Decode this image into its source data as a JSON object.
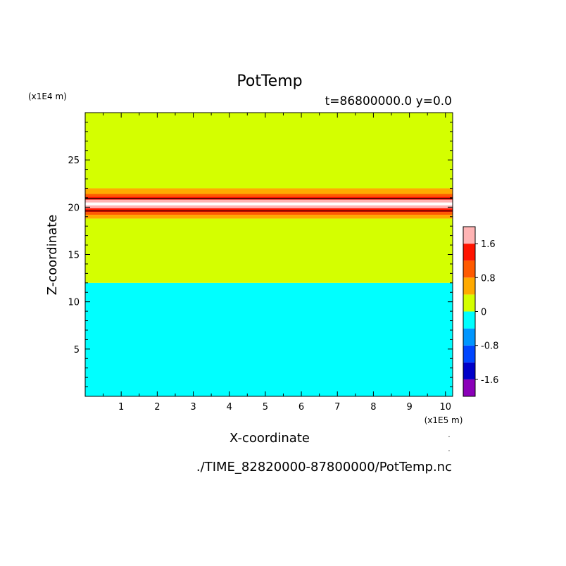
{
  "chart_data": {
    "type": "heatmap",
    "title": "PotTemp",
    "subtitle": "t=86800000.0 y=0.0",
    "xlabel": "X-coordinate",
    "ylabel": "Z-coordinate",
    "x_unit": "(x1E5 m)",
    "y_unit": "(x1E4 m)",
    "xlim": [
      0,
      10.2
    ],
    "ylim": [
      0,
      30
    ],
    "x_ticks": [
      1,
      2,
      3,
      4,
      5,
      6,
      7,
      8,
      9,
      10
    ],
    "y_ticks": [
      5,
      10,
      15,
      20,
      25
    ],
    "colorbar": {
      "levels": [
        -2.0,
        -1.6,
        -1.2,
        -0.8,
        -0.4,
        0.0,
        0.4,
        0.8,
        1.2,
        1.6,
        2.0
      ],
      "colors": [
        "#8a00b8",
        "#0000c8",
        "#0046ff",
        "#0096ff",
        "#00ffff",
        "#d4ff00",
        "#ffaa00",
        "#ff5a00",
        "#ff1400",
        "#ffb4b4"
      ],
      "tick_values": [
        -1.6,
        -0.8,
        0,
        0.8,
        1.6
      ],
      "tick_labels": [
        "-1.6",
        "-0.8",
        "0",
        "0.8",
        "1.6"
      ]
    },
    "bands": [
      {
        "z0": 0.0,
        "z1": 12.0,
        "color": "#00ffff"
      },
      {
        "z0": 12.0,
        "z1": 18.8,
        "color": "#d4ff00"
      },
      {
        "z0": 18.8,
        "z1": 19.2,
        "color": "#ffaa00"
      },
      {
        "z0": 19.2,
        "z1": 19.5,
        "color": "#ff5a00"
      },
      {
        "z0": 19.5,
        "z1": 19.9,
        "color": "#ff1400"
      },
      {
        "z0": 19.9,
        "z1": 20.2,
        "color": "#ffb4b4"
      },
      {
        "z0": 20.2,
        "z1": 20.5,
        "color": "#ffffff"
      },
      {
        "z0": 20.5,
        "z1": 20.8,
        "color": "#ffb4b4"
      },
      {
        "z0": 20.8,
        "z1": 21.1,
        "color": "#ff1400"
      },
      {
        "z0": 21.1,
        "z1": 21.4,
        "color": "#ff5a00"
      },
      {
        "z0": 21.4,
        "z1": 22.0,
        "color": "#ffaa00"
      },
      {
        "z0": 22.0,
        "z1": 30.0,
        "color": "#d4ff00"
      }
    ],
    "contour_lines_z": [
      19.6,
      20.9
    ]
  },
  "footer": {
    "source_path": "./TIME_82820000-87800000/PotTemp.nc"
  }
}
